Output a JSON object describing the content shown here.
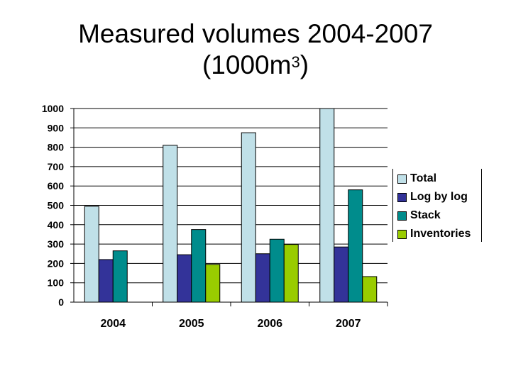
{
  "title_line1": "Measured volumes 2004-2007",
  "title_line2_prefix": "(1000m",
  "title_line2_sup": "3",
  "title_line2_suffix": ")",
  "chart_data": {
    "type": "bar",
    "title": "Measured volumes 2004-2007 (1000m3)",
    "categories": [
      "2004",
      "2005",
      "2006",
      "2007"
    ],
    "ylim": [
      0,
      1000
    ],
    "yticks": [
      0,
      100,
      200,
      300,
      400,
      500,
      600,
      700,
      800,
      900,
      1000
    ],
    "grid": true,
    "legend_position": "right",
    "series": [
      {
        "name": "Total",
        "color": "#c0e0e8",
        "values": [
          495,
          810,
          875,
          1000
        ]
      },
      {
        "name": "Log by log",
        "color": "#333399",
        "values": [
          220,
          245,
          250,
          285
        ]
      },
      {
        "name": "Stack",
        "color": "#008c8c",
        "values": [
          265,
          375,
          325,
          580
        ]
      },
      {
        "name": "Inventories",
        "color": "#99cc00",
        "values": [
          null,
          195,
          298,
          132
        ]
      }
    ]
  }
}
